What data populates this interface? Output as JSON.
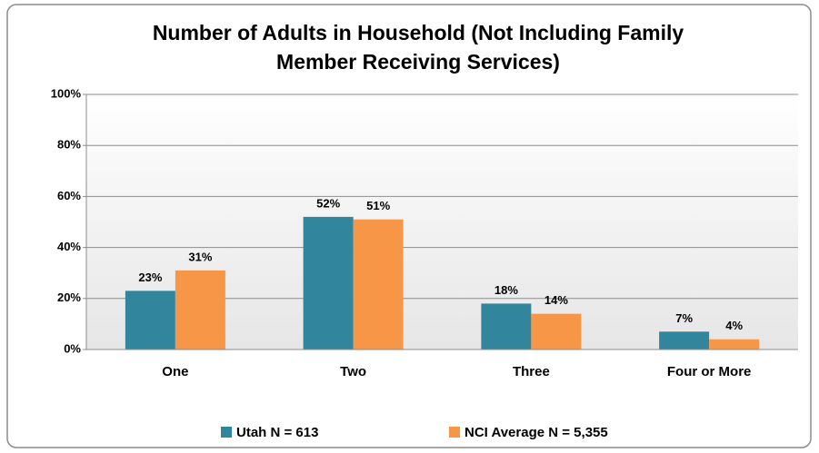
{
  "chart_data": {
    "type": "bar",
    "title": [
      "Number of Adults in Household (Not Including Family",
      "Member Receiving Services)"
    ],
    "categories": [
      "One",
      "Two",
      "Three",
      "Four or More"
    ],
    "series": [
      {
        "name": "Utah N = 613",
        "color": "#31859c",
        "values": [
          23,
          52,
          18,
          7
        ],
        "value_labels": [
          "23%",
          "52%",
          "18%",
          "7%"
        ]
      },
      {
        "name": "NCI Average N = 5,355",
        "color": "#f79646",
        "values": [
          31,
          51,
          14,
          4
        ],
        "value_labels": [
          "31%",
          "51%",
          "14%",
          "4%"
        ]
      }
    ],
    "ylim": [
      0,
      100
    ],
    "yticks": [
      {
        "value": 0,
        "label": "0%"
      },
      {
        "value": 20,
        "label": "20%"
      },
      {
        "value": 40,
        "label": "40%"
      },
      {
        "value": 60,
        "label": "60%"
      },
      {
        "value": 80,
        "label": "80%"
      },
      {
        "value": 100,
        "label": "100%"
      }
    ],
    "grid": true,
    "legend": "bottom"
  }
}
